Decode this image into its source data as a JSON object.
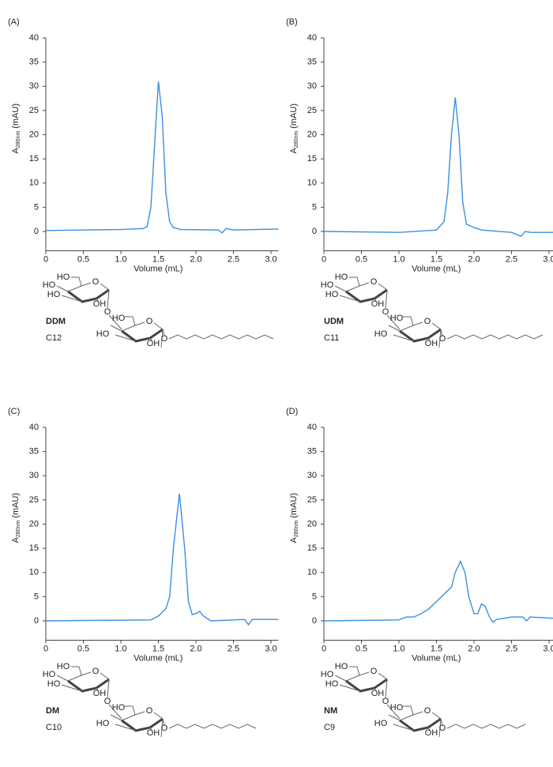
{
  "chart_data": [
    {
      "type": "line",
      "label": "(A)",
      "xlabel": "Volume (mL)",
      "ylabel": {
        "main": "A",
        "sub": "280nm",
        "unit": "(mAU)"
      },
      "xlim": [
        0,
        3.1
      ],
      "ylim": [
        -4,
        40
      ],
      "xticks": [
        0,
        0.5,
        {
          "value": 1,
          "label": "1.0"
        },
        1.5,
        {
          "value": 2,
          "label": "2.0"
        },
        2.5,
        {
          "value": 3,
          "label": "3.0"
        }
      ],
      "yticks": [
        0,
        5,
        10,
        15,
        20,
        25,
        30,
        35,
        40
      ],
      "series": [
        {
          "color": "#3b8fe0",
          "x": [
            0,
            0.5,
            1.0,
            1.3,
            1.35,
            1.4,
            1.45,
            1.5,
            1.55,
            1.6,
            1.65,
            1.7,
            1.8,
            2.3,
            2.35,
            2.4,
            2.5,
            3.1
          ],
          "values": [
            0.2,
            0.3,
            0.4,
            0.6,
            1,
            5,
            18,
            31,
            24,
            8,
            2,
            0.8,
            0.4,
            0.3,
            -0.3,
            0.6,
            0.3,
            0.5
          ]
        }
      ],
      "structure": {
        "name": "DDM",
        "chain": "C12",
        "atoms": [
          "HO",
          "HO",
          "HO",
          "O",
          "OH",
          "O",
          "HO",
          "HO",
          "O",
          "OH",
          "O"
        ]
      }
    },
    {
      "type": "line",
      "label": "(B)",
      "xlabel": "Volume (mL)",
      "ylabel": {
        "main": "A",
        "sub": "280nm",
        "unit": "(mAU)"
      },
      "xlim": [
        0,
        3.1
      ],
      "ylim": [
        -4,
        40
      ],
      "xticks": [
        0,
        0.5,
        {
          "value": 1,
          "label": "1.0"
        },
        1.5,
        {
          "value": 2,
          "label": "2.0"
        },
        2.5,
        {
          "value": 3,
          "label": "3.0"
        }
      ],
      "yticks": [
        0,
        5,
        10,
        15,
        20,
        25,
        30,
        35,
        40
      ],
      "series": [
        {
          "color": "#3b8fe0",
          "x": [
            0,
            1.0,
            1.5,
            1.6,
            1.65,
            1.7,
            1.75,
            1.8,
            1.85,
            1.9,
            2.0,
            2.1,
            2.5,
            2.63,
            2.68,
            2.75,
            3.1
          ],
          "values": [
            0,
            -0.2,
            0.3,
            2,
            8,
            20,
            27.7,
            20,
            6,
            1.5,
            0.8,
            0.3,
            -0.2,
            -1,
            0,
            -0.2,
            -0.2
          ]
        }
      ],
      "structure": {
        "name": "UDM",
        "chain": "C11",
        "atoms": [
          "HO",
          "HO",
          "HO",
          "O",
          "OH",
          "O",
          "HO",
          "HO",
          "O",
          "OH",
          "O"
        ]
      }
    },
    {
      "type": "line",
      "label": "(C)",
      "xlabel": "Volume (mL)",
      "ylabel": {
        "main": "A",
        "sub": "280nm",
        "unit": "(mAU)"
      },
      "xlim": [
        0,
        3.1
      ],
      "ylim": [
        -4,
        40
      ],
      "xticks": [
        0,
        0.5,
        {
          "value": 1,
          "label": "1.0"
        },
        1.5,
        {
          "value": 2,
          "label": "2.0"
        },
        2.5,
        {
          "value": 3,
          "label": "3.0"
        }
      ],
      "yticks": [
        0,
        5,
        10,
        15,
        20,
        25,
        30,
        35,
        40
      ],
      "series": [
        {
          "color": "#3b8fe0",
          "x": [
            0,
            1.4,
            1.5,
            1.6,
            1.65,
            1.7,
            1.78,
            1.85,
            1.9,
            1.95,
            2.0,
            2.05,
            2.1,
            2.2,
            2.5,
            2.65,
            2.7,
            2.75,
            3.1
          ],
          "values": [
            0,
            0.2,
            1,
            2.5,
            5,
            15,
            26.3,
            15,
            4,
            1.3,
            1.5,
            2,
            1,
            0,
            0.2,
            0.3,
            -0.8,
            0.3,
            0.3
          ]
        }
      ],
      "structure": {
        "name": "DM",
        "chain": "C10",
        "atoms": [
          "HO",
          "HO",
          "HO",
          "O",
          "OH",
          "O",
          "HO",
          "HO",
          "O",
          "OH",
          "O"
        ]
      }
    },
    {
      "type": "line",
      "label": "(D)",
      "xlabel": "Volume (mL)",
      "ylabel": {
        "main": "A",
        "sub": "280nm",
        "unit": "(mAU)"
      },
      "xlim": [
        0,
        3.1
      ],
      "ylim": [
        -4,
        40
      ],
      "xticks": [
        0,
        0.5,
        {
          "value": 1,
          "label": "1.0"
        },
        1.5,
        {
          "value": 2,
          "label": "2.0"
        },
        2.5,
        {
          "value": 3,
          "label": "3.0"
        }
      ],
      "yticks": [
        0,
        5,
        10,
        15,
        20,
        25,
        30,
        35,
        40
      ],
      "series": [
        {
          "color": "#3b8fe0",
          "x": [
            0,
            1.0,
            1.1,
            1.2,
            1.3,
            1.4,
            1.5,
            1.6,
            1.7,
            1.75,
            1.82,
            1.88,
            1.93,
            2.0,
            2.05,
            2.1,
            2.15,
            2.2,
            2.25,
            2.3,
            2.5,
            2.65,
            2.7,
            2.75,
            3.1
          ],
          "values": [
            0,
            0.2,
            0.8,
            0.8,
            1.5,
            2.5,
            4,
            5.5,
            7,
            10,
            12.3,
            10,
            5,
            1.5,
            1.5,
            3.5,
            3,
            1,
            -0.3,
            0.3,
            0.8,
            0.8,
            0,
            0.8,
            0.5
          ]
        }
      ],
      "structure": {
        "name": "NM",
        "chain": "C9",
        "atoms": [
          "HO",
          "HO",
          "HO",
          "O",
          "OH",
          "O",
          "HO",
          "HO",
          "O",
          "OH",
          "O"
        ]
      }
    }
  ]
}
